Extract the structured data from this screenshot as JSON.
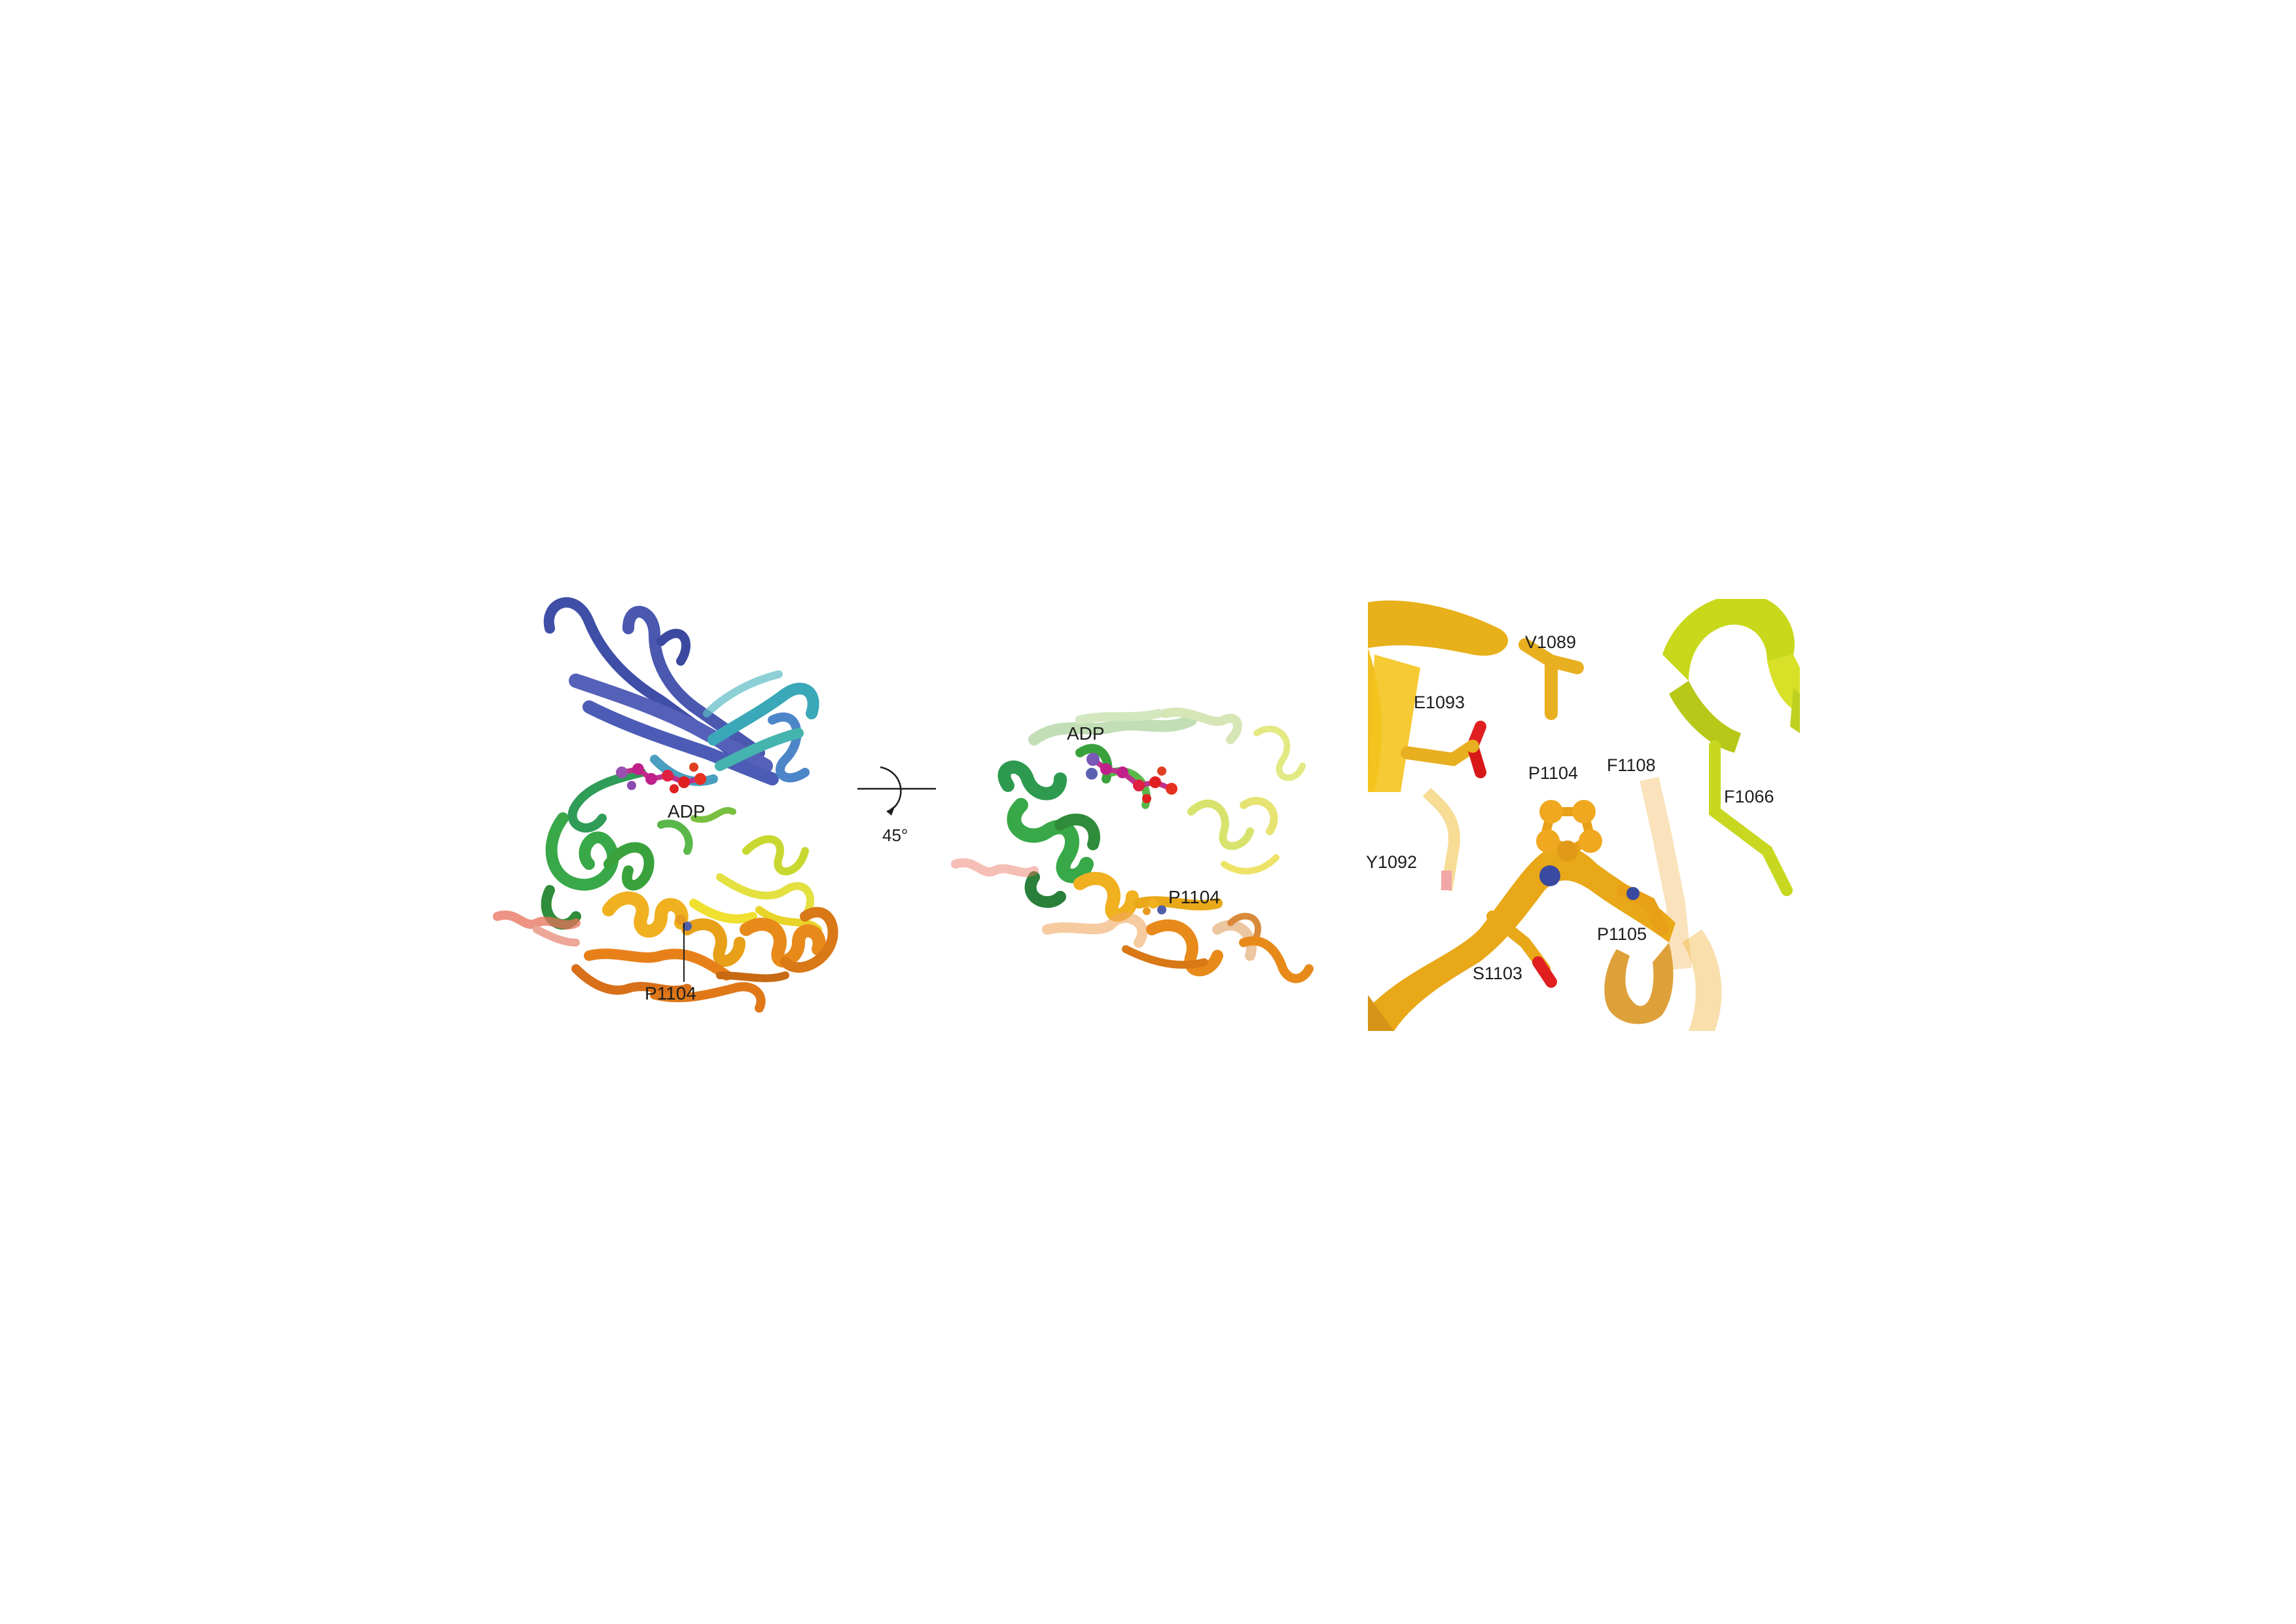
{
  "figure": {
    "panel_left": {
      "labels": {
        "ligand": "ADP",
        "residue": "P1104"
      }
    },
    "rotation": {
      "angle_label": "45°"
    },
    "panel_middle": {
      "labels": {
        "ligand": "ADP",
        "residue": "P1104"
      }
    },
    "panel_right": {
      "labels": {
        "v1089": "V1089",
        "e1093": "E1093",
        "p1104": "P1104",
        "f1108": "F1108",
        "f1066": "F1066",
        "y1092": "Y1092",
        "p1105": "P1105",
        "s1103": "S1103"
      }
    }
  },
  "colors": {
    "n_lobe_blue": "#4a55a8",
    "teal": "#38b5a8",
    "green": "#3aa23c",
    "yellow": "#e6d020",
    "orange": "#e88a1a",
    "salmon": "#e86a5a",
    "adp_magenta": "#c0208a",
    "oxygen_red": "#e02020",
    "nitrogen_blue": "#3a4aa0"
  }
}
